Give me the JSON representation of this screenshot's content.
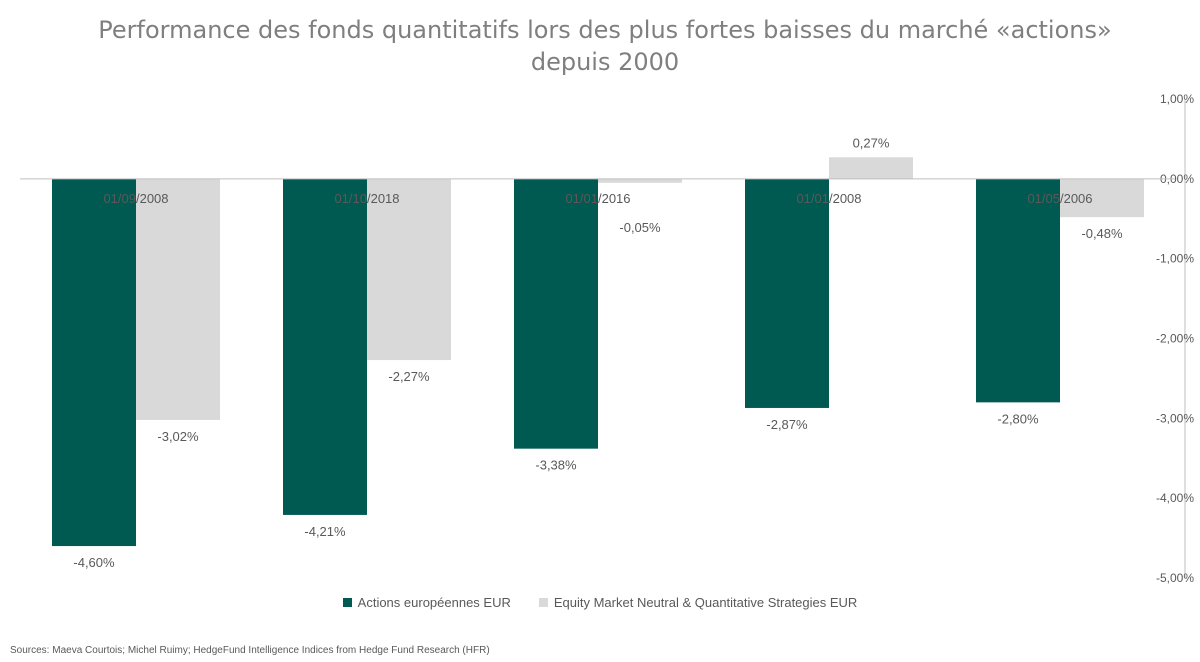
{
  "colors": {
    "series1": "#005a52",
    "series2": "#d9d9d9",
    "axis": "#bfbfbf",
    "text": "#595959",
    "title": "#7f7f7f"
  },
  "chart_data": {
    "type": "bar",
    "title_line1": "Performance des fonds quantitatifs lors des plus fortes baisses du marché «actions»",
    "title_line2": "depuis 2000",
    "categories": [
      "01/09/2008",
      "01/10/2018",
      "01/01/2016",
      "01/01/2008",
      "01/05/2006"
    ],
    "series": [
      {
        "name": "Actions européennes EUR",
        "values": [
          -4.6,
          -4.21,
          -3.38,
          -2.87,
          -2.8
        ],
        "labels": [
          "-4,60%",
          "-4,21%",
          "-3,38%",
          "-2,87%",
          "-2,80%"
        ]
      },
      {
        "name": "Equity Market Neutral & Quantitative Strategies EUR",
        "values": [
          -3.02,
          -2.27,
          -0.05,
          0.27,
          -0.48
        ],
        "labels": [
          "-3,02%",
          "-2,27%",
          "-0,05%",
          "0,27%",
          "-0,48%"
        ]
      }
    ],
    "ylim": [
      -5,
      1
    ],
    "yticks": [
      1,
      0,
      -1,
      -2,
      -3,
      -4,
      -5
    ],
    "ytick_labels": [
      "1,00%",
      "0,00%",
      "-1,00%",
      "-2,00%",
      "-3,00%",
      "-4,00%",
      "-5,00%"
    ],
    "y_axis_position": "right",
    "legend_position": "bottom",
    "grid": false
  },
  "source_text": "Sources: Maeva Courtois; Michel Ruimy; HedgeFund Intelligence Indices from Hedge Fund Research (HFR)"
}
